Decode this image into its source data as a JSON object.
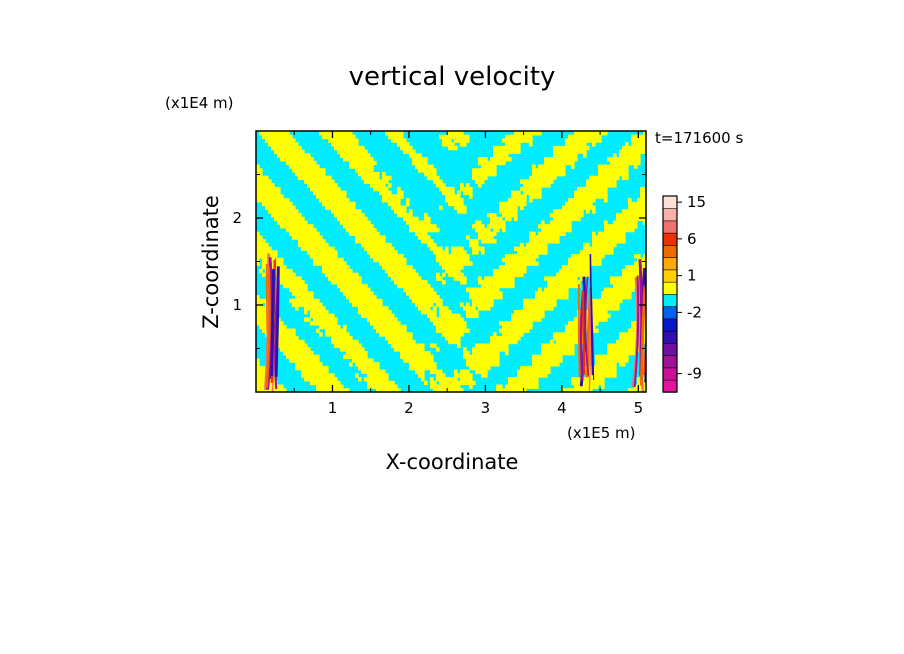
{
  "chart_data": {
    "type": "heatmap",
    "title": "vertical velocity",
    "xlabel": "X-coordinate",
    "ylabel": "Z-coordinate",
    "x_unit": "(x1E5 m)",
    "y_unit": "(x1E4 m)",
    "time_label": "t=171600 s",
    "x_ticks": [
      1,
      2,
      3,
      4,
      5
    ],
    "y_ticks": [
      1,
      2
    ],
    "xlim": [
      0,
      5.1
    ],
    "ylim": [
      0,
      3.0
    ],
    "colorbar": {
      "tick_labels": [
        "15",
        "6",
        "1",
        "-2",
        "-9"
      ],
      "tick_values": [
        15,
        6,
        1,
        -2,
        -9
      ],
      "levels": [
        {
          "min": -12,
          "max": -10,
          "color": "#e8109e"
        },
        {
          "min": -10,
          "max": -8,
          "color": "#c81098"
        },
        {
          "min": -8,
          "max": -6,
          "color": "#a01098"
        },
        {
          "min": -6,
          "max": -4,
          "color": "#7010a0"
        },
        {
          "min": -4,
          "max": -3,
          "color": "#3010b0"
        },
        {
          "min": -3,
          "max": -2,
          "color": "#0818c8"
        },
        {
          "min": -2,
          "max": -1,
          "color": "#0060f0"
        },
        {
          "min": -1,
          "max": 0,
          "color": "#00ecff"
        },
        {
          "min": 0,
          "max": 1,
          "color": "#ffff00"
        },
        {
          "min": 1,
          "max": 2,
          "color": "#ffd000"
        },
        {
          "min": 2,
          "max": 3,
          "color": "#ffa800"
        },
        {
          "min": 3,
          "max": 6,
          "color": "#f06a00"
        },
        {
          "min": 6,
          "max": 9,
          "color": "#f03000"
        },
        {
          "min": 9,
          "max": 12,
          "color": "#f07070"
        },
        {
          "min": 12,
          "max": 15,
          "color": "#f8b0a8"
        },
        {
          "min": 15,
          "max": 20,
          "color": "#fde0d8"
        }
      ]
    },
    "dominant_colors": {
      "positive": "#ffff00",
      "negative": "#00ecff"
    },
    "strong_updraft_x": [
      0.2,
      4.3,
      5.05
    ]
  }
}
